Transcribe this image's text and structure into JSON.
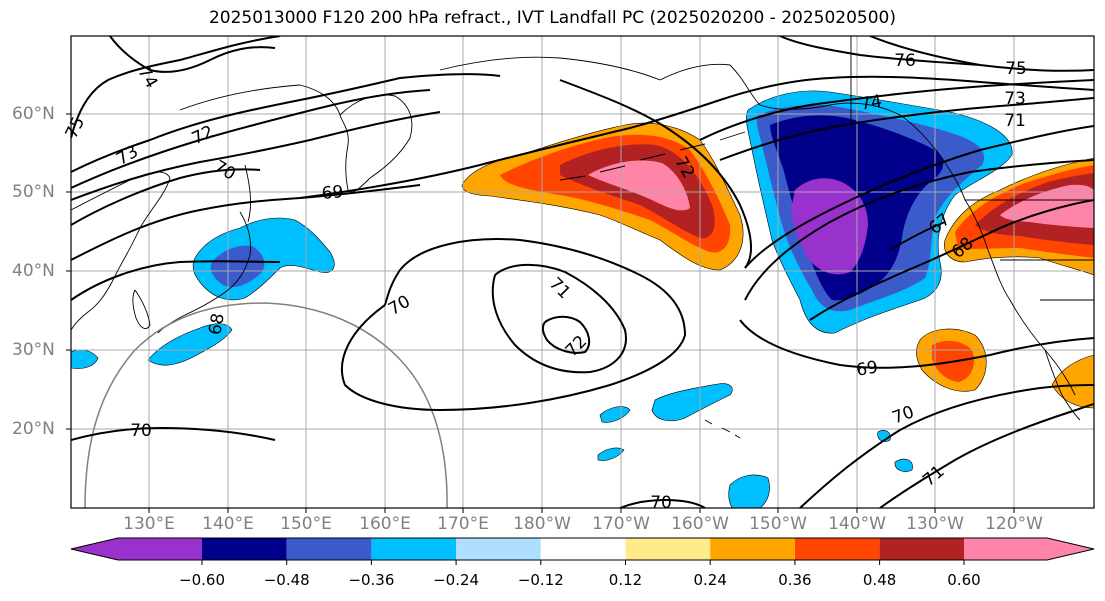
{
  "title": "2025013000 F120 200 hPa refract., IVT Landfall PC (2025020200 - 2025020500)",
  "lat_labels": [
    "60°N",
    "50°N",
    "40°N",
    "30°N",
    "20°N"
  ],
  "lon_labels": [
    "130°E",
    "140°E",
    "150°E",
    "160°E",
    "170°E",
    "180°W",
    "170°W",
    "160°W",
    "150°W",
    "140°W",
    "130°W",
    "120°W"
  ],
  "colorbar": {
    "colors": [
      "#9932CC",
      "#00008B",
      "#3A5BC9",
      "#00BFFF",
      "#ADDFFF",
      "#FFFFFF",
      "#FFEB8A",
      "#FFA500",
      "#FF4500",
      "#B22222",
      "#FF85A8"
    ],
    "tick_labels": [
      "−0.60",
      "−0.48",
      "−0.36",
      "−0.24",
      "−0.12",
      "0.12",
      "0.24",
      "0.36",
      "0.48",
      "0.60"
    ]
  },
  "contour_labels": [
    {
      "text": "74",
      "name": "contour-label-74-nw"
    },
    {
      "text": "75",
      "name": "contour-label-75-w"
    },
    {
      "text": "73",
      "name": "contour-label-73-w"
    },
    {
      "text": "72",
      "name": "contour-label-72-w"
    },
    {
      "text": "70",
      "name": "contour-label-70-japan"
    },
    {
      "text": "69",
      "name": "contour-label-69-north-pacific"
    },
    {
      "text": "70",
      "name": "contour-label-70-central"
    },
    {
      "text": "71",
      "name": "contour-label-71-central"
    },
    {
      "text": "72",
      "name": "contour-label-72-central"
    },
    {
      "text": "68",
      "name": "contour-label-68-japan"
    },
    {
      "text": "70",
      "name": "contour-label-70-southwest"
    },
    {
      "text": "70",
      "name": "contour-label-70-south"
    },
    {
      "text": "76",
      "name": "contour-label-76-alaska"
    },
    {
      "text": "75",
      "name": "contour-label-75-alaska"
    },
    {
      "text": "74",
      "name": "contour-label-74-gulf"
    },
    {
      "text": "73",
      "name": "contour-label-73-east"
    },
    {
      "text": "71",
      "name": "contour-label-71-east"
    },
    {
      "text": "72",
      "name": "contour-label-72-aleutian"
    },
    {
      "text": "67",
      "name": "contour-label-67-east"
    },
    {
      "text": "68",
      "name": "contour-label-68-east"
    },
    {
      "text": "69",
      "name": "contour-label-69-east"
    },
    {
      "text": "70",
      "name": "contour-label-70-east"
    },
    {
      "text": "71",
      "name": "contour-label-71-southeast"
    }
  ]
}
